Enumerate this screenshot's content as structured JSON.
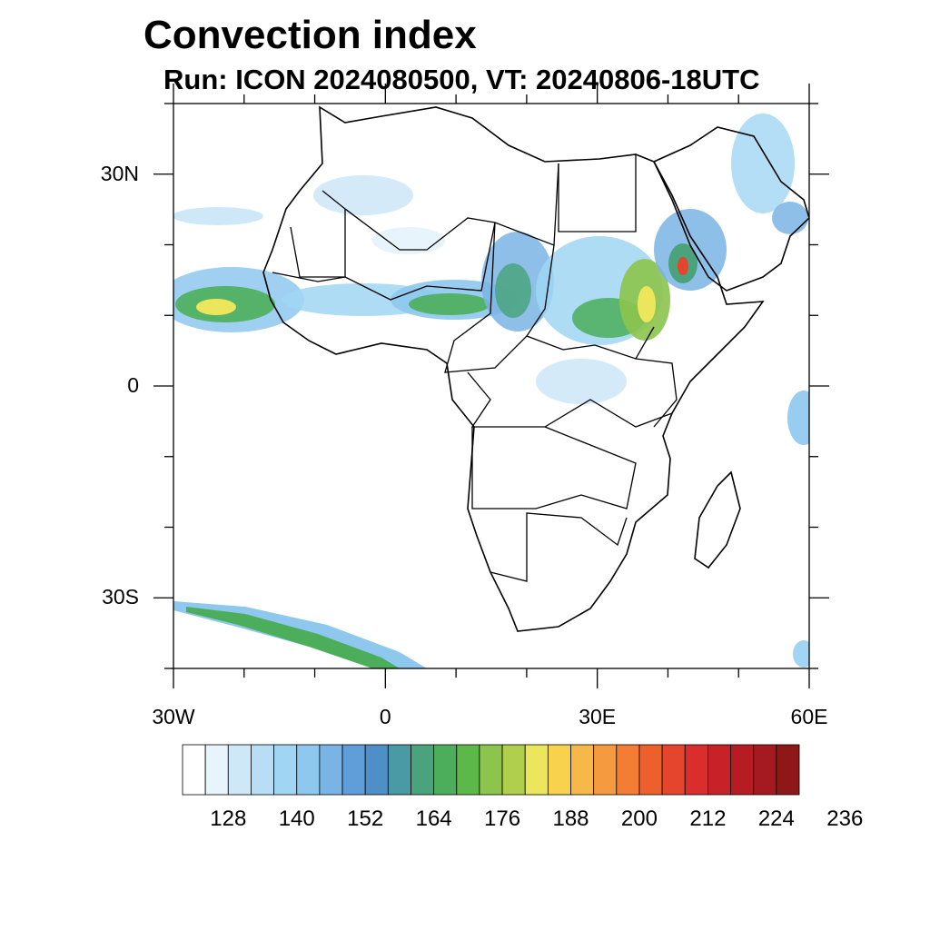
{
  "title": "Convection index",
  "subtitle": "Run: ICON 2024080500,  VT: 20240806-18UTC",
  "map": {
    "lon_range": [
      -30,
      60
    ],
    "lat_range": [
      -40,
      40
    ],
    "lat_ticks": [
      {
        "label": "30N",
        "value": 30
      },
      {
        "label": "0",
        "value": 0
      },
      {
        "label": "30S",
        "value": -30
      }
    ],
    "lon_ticks": [
      {
        "label": "30W",
        "value": -30
      },
      {
        "label": "0",
        "value": 0
      },
      {
        "label": "30E",
        "value": 30
      },
      {
        "label": "60E",
        "value": 60
      }
    ]
  },
  "colorbar": {
    "labels": [
      "128",
      "140",
      "152",
      "164",
      "176",
      "188",
      "200",
      "212",
      "224",
      "236"
    ],
    "colors": [
      "#ffffff",
      "#e8f4fb",
      "#cfe8f7",
      "#b8def5",
      "#a0d6f3",
      "#8ec8ee",
      "#79b4e4",
      "#5f9ed9",
      "#4e8fc8",
      "#4a9aa6",
      "#4aa37c",
      "#4cae5a",
      "#5cb848",
      "#8cc44c",
      "#b0cf4c",
      "#ece65c",
      "#f8d24c",
      "#f7b84a",
      "#f69a3f",
      "#f37d34",
      "#ee5f2e",
      "#e4452c",
      "#d92e2d",
      "#c82127",
      "#b71c24",
      "#a51a20",
      "#8e1818"
    ]
  }
}
